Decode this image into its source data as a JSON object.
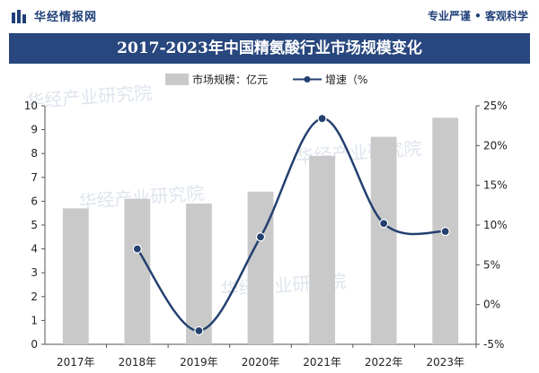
{
  "header": {
    "brand_name": "华经情报网",
    "brand_logo_icon": "bar-logo-icon",
    "slogan": "专业严谨 • 客观科学",
    "accent_color": "#28477e"
  },
  "chart_data": {
    "type": "bar-line",
    "title": "2017-2023年中国精氨酸行业市场规模变化",
    "categories": [
      "2017年",
      "2018年",
      "2019年",
      "2020年",
      "2021年",
      "2022年",
      "2023年"
    ],
    "series": [
      {
        "name": "市场规模：亿元",
        "type": "bar",
        "axis": "left",
        "values": [
          5.7,
          6.1,
          5.9,
          6.4,
          7.9,
          8.7,
          9.5
        ],
        "color": "#c9c9c9"
      },
      {
        "name": "增速（%",
        "type": "line",
        "axis": "right",
        "values": [
          null,
          7.0,
          -3.3,
          8.5,
          23.4,
          10.2,
          9.2
        ],
        "color": "#23406f"
      }
    ],
    "left_axis": {
      "min": 0,
      "max": 10,
      "ticks": [
        "0",
        "1",
        "2",
        "3",
        "4",
        "5",
        "6",
        "7",
        "8",
        "9",
        "10"
      ]
    },
    "right_axis": {
      "min": -5,
      "max": 25,
      "ticks": [
        "-5%",
        "0%",
        "5%",
        "10%",
        "15%",
        "20%",
        "25%"
      ]
    },
    "legend_placement": "top-center",
    "grid": false
  },
  "watermark": {
    "texts": [
      "华经产业研究院",
      "华经产业研究院",
      "华经产业研究院",
      "华经产业研究院"
    ]
  }
}
